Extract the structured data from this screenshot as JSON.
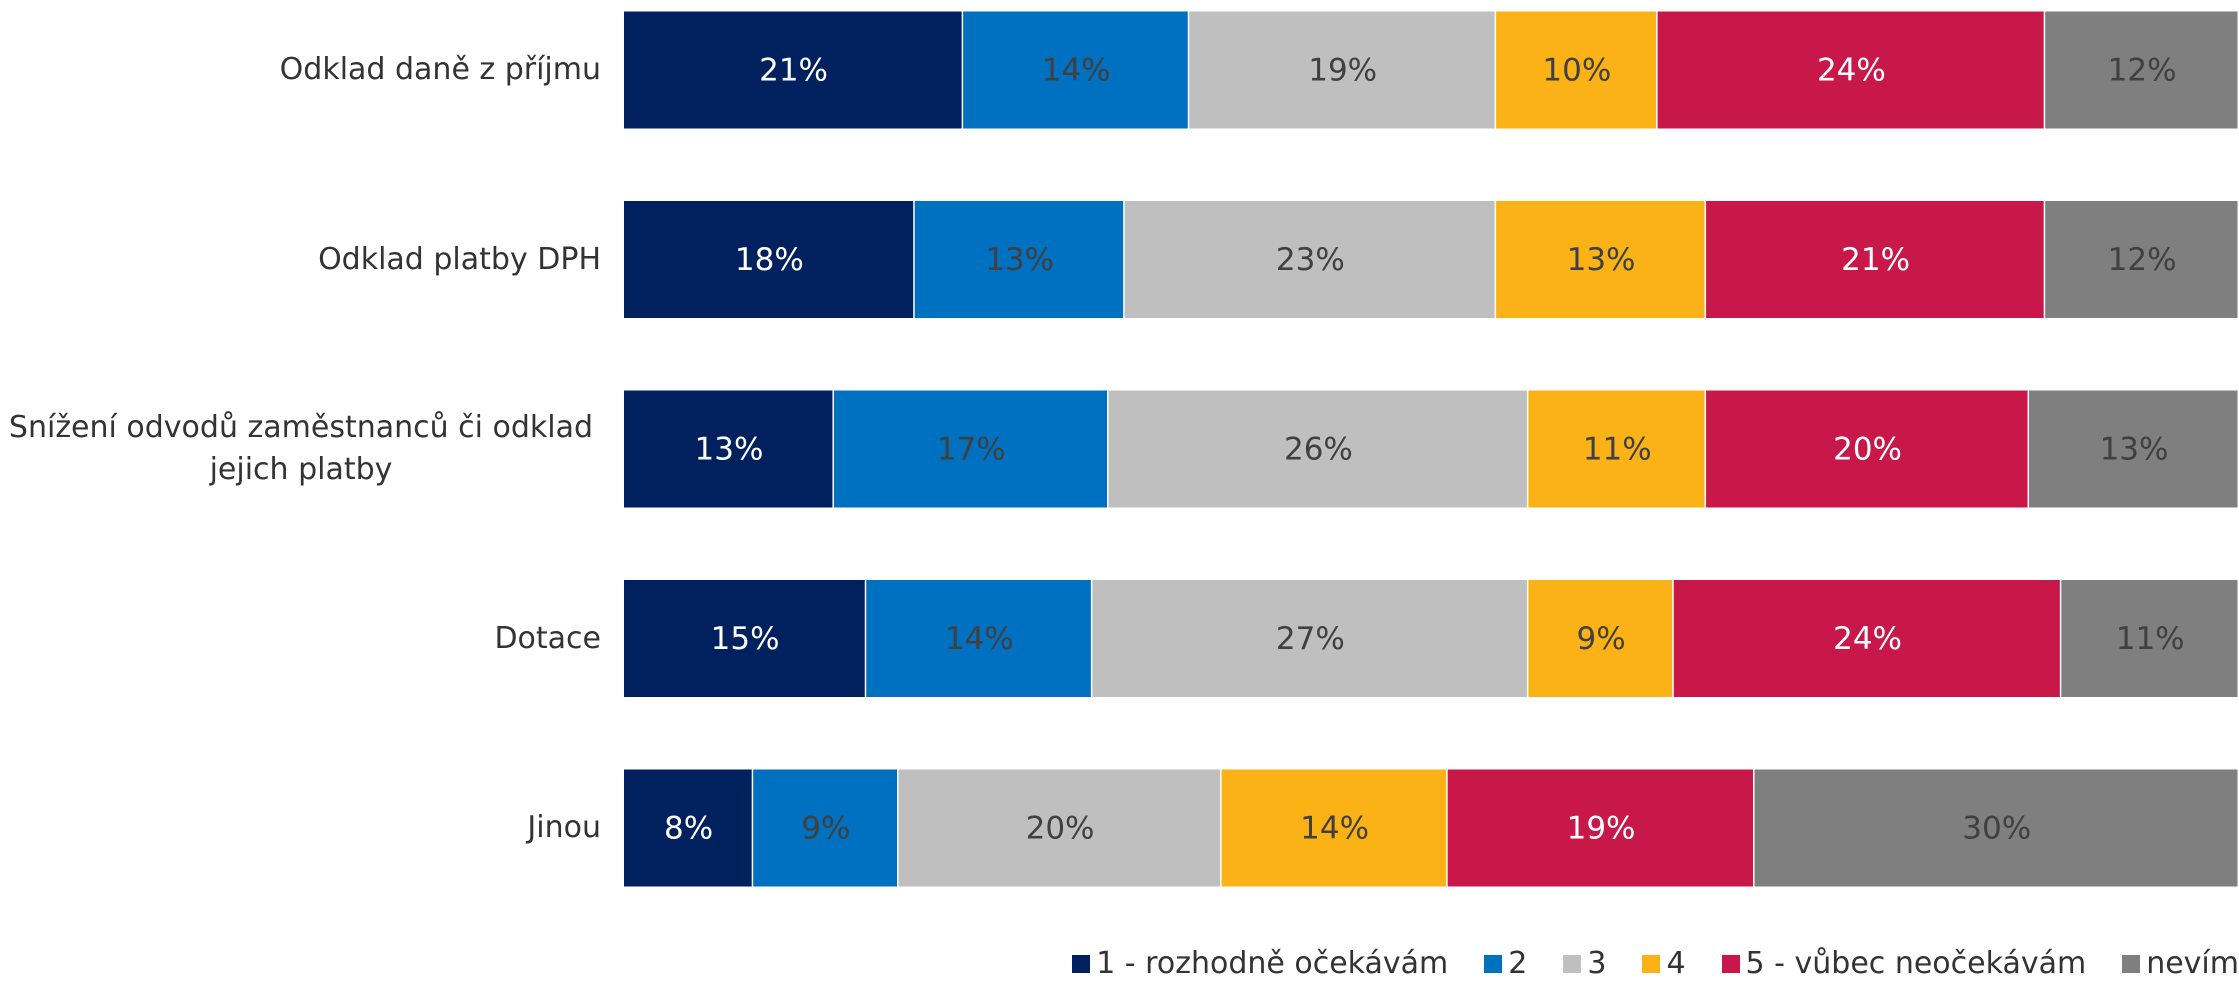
{
  "chart_data": {
    "type": "stacked_bar_horizontal",
    "categories": [
      "Odklad daně z příjmu",
      "Odklad platby DPH",
      "Snížení odvodů zaměstnanců či odklad jejich platby",
      "Dotace",
      "Jinou"
    ],
    "xlim": [
      0,
      100
    ],
    "series": [
      {
        "name": "1 - rozhodně očekávám",
        "color": "#00215e",
        "values": [
          21,
          18,
          13,
          15,
          8
        ],
        "value_labels": [
          "21%",
          "18%",
          "13%",
          "15%",
          "8%"
        ]
      },
      {
        "name": "2",
        "color": "#0070c0",
        "values": [
          14,
          13,
          17,
          14,
          9
        ],
        "value_labels": [
          "14%",
          "13%",
          "17%",
          "14%",
          "9%"
        ]
      },
      {
        "name": "3",
        "color": "#bfbfbf",
        "values": [
          19,
          23,
          26,
          27,
          20
        ],
        "value_labels": [
          "19%",
          "23%",
          "26%",
          "27%",
          "20%"
        ]
      },
      {
        "name": "4",
        "color": "#fbb216",
        "values": [
          10,
          13,
          11,
          9,
          14
        ],
        "value_labels": [
          "10%",
          "13%",
          "11%",
          "9%",
          "14%"
        ]
      },
      {
        "name": "5 - vůbec neočekávám",
        "color": "#c8184a",
        "values": [
          24,
          21,
          20,
          24,
          19
        ],
        "value_labels": [
          "24%",
          "21%",
          "20%",
          "24%",
          "19%"
        ]
      },
      {
        "name": "nevím",
        "color": "#7f7f7f",
        "values": [
          12,
          12,
          13,
          11,
          30
        ],
        "value_labels": [
          "12%",
          "12%",
          "13%",
          "11%",
          "30%"
        ]
      }
    ],
    "legend": "bottom-right"
  }
}
